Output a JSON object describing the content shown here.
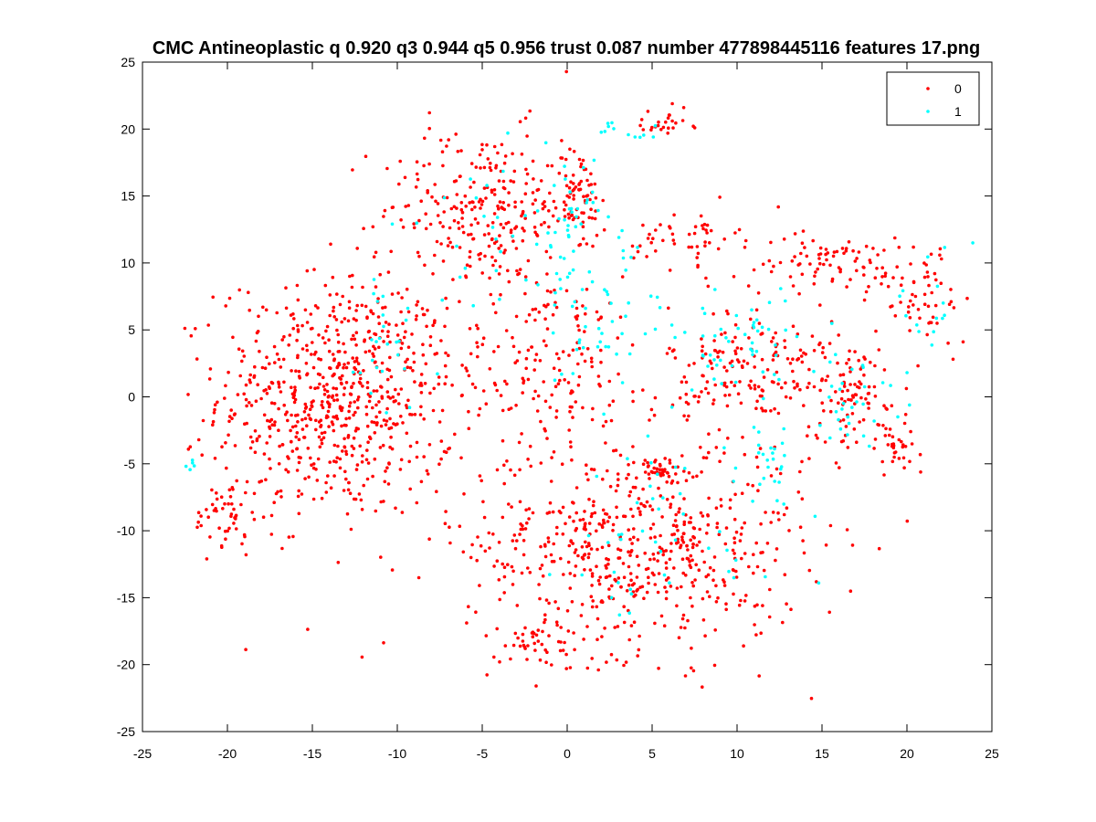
{
  "chart_data": {
    "type": "scatter",
    "title": "CMC Antineoplastic q 0.920 q3 0.944 q5 0.956 trust 0.087 number 477898445116 features 17.png",
    "xlabel": "",
    "ylabel": "",
    "xlim": [
      -25,
      25
    ],
    "ylim": [
      -25,
      25
    ],
    "xticks": [
      -25,
      -20,
      -15,
      -10,
      -5,
      0,
      5,
      10,
      15,
      20,
      25
    ],
    "yticks": [
      -25,
      -20,
      -15,
      -10,
      -5,
      0,
      5,
      10,
      15,
      20,
      25
    ],
    "grid": false,
    "legend_position": "top-right",
    "series": [
      {
        "name": "0",
        "color": "#ff0000",
        "clusters": [
          {
            "cx": -13.5,
            "cy": 0,
            "sx": 3.5,
            "sy": 4.5,
            "n": 700
          },
          {
            "cx": -5,
            "cy": 14,
            "sx": 3,
            "sy": 3,
            "n": 260
          },
          {
            "cx": 0.5,
            "cy": 15,
            "sx": 0.7,
            "sy": 2,
            "n": 70
          },
          {
            "cx": -1,
            "cy": 3,
            "sx": 3,
            "sy": 3,
            "n": 160
          },
          {
            "cx": 4,
            "cy": -11,
            "sx": 5,
            "sy": 4,
            "n": 620
          },
          {
            "cx": 11,
            "cy": 2,
            "sx": 2.5,
            "sy": 2.5,
            "n": 180
          },
          {
            "cx": 17,
            "cy": 0,
            "sx": 1.5,
            "sy": 2,
            "n": 90
          },
          {
            "cx": 15,
            "cy": 10,
            "sx": 2.5,
            "sy": 1,
            "n": 80
          },
          {
            "cx": 21,
            "cy": 8,
            "sx": 1.5,
            "sy": 2,
            "n": 60
          },
          {
            "cx": -20,
            "cy": -9,
            "sx": 1,
            "sy": 1.5,
            "n": 50
          },
          {
            "cx": 7,
            "cy": 12,
            "sx": 1.5,
            "sy": 1,
            "n": 50
          },
          {
            "cx": 5.5,
            "cy": 20.5,
            "sx": 1,
            "sy": 0.5,
            "n": 25
          },
          {
            "cx": 5.5,
            "cy": -5.5,
            "sx": 0.6,
            "sy": 0.5,
            "n": 30
          },
          {
            "cx": 19.5,
            "cy": -4,
            "sx": 1.2,
            "sy": 1,
            "n": 30
          },
          {
            "cx": -1.5,
            "cy": -18.5,
            "sx": 1.5,
            "sy": 1,
            "n": 40
          }
        ]
      },
      {
        "name": "1",
        "color": "#00ffff",
        "clusters": [
          {
            "cx": 0,
            "cy": 13,
            "sx": 0.8,
            "sy": 2.5,
            "n": 40
          },
          {
            "cx": 2,
            "cy": 6,
            "sx": 2,
            "sy": 3,
            "n": 45
          },
          {
            "cx": 10,
            "cy": 4,
            "sx": 2.5,
            "sy": 2,
            "n": 55
          },
          {
            "cx": 17,
            "cy": 0,
            "sx": 1.5,
            "sy": 1.5,
            "n": 30
          },
          {
            "cx": 12,
            "cy": -5,
            "sx": 1,
            "sy": 1.5,
            "n": 25
          },
          {
            "cx": -11,
            "cy": 4,
            "sx": 1.5,
            "sy": 4,
            "n": 25
          },
          {
            "cx": 5,
            "cy": -11,
            "sx": 4,
            "sy": 4,
            "n": 45
          },
          {
            "cx": -22,
            "cy": -5.2,
            "sx": 0.2,
            "sy": 0.3,
            "n": 5
          },
          {
            "cx": 4,
            "cy": 20,
            "sx": 1.5,
            "sy": 0.6,
            "n": 12
          },
          {
            "cx": 21,
            "cy": 7,
            "sx": 1.5,
            "sy": 2,
            "n": 15
          },
          {
            "cx": -4,
            "cy": 12,
            "sx": 3,
            "sy": 3,
            "n": 25
          }
        ]
      }
    ]
  }
}
